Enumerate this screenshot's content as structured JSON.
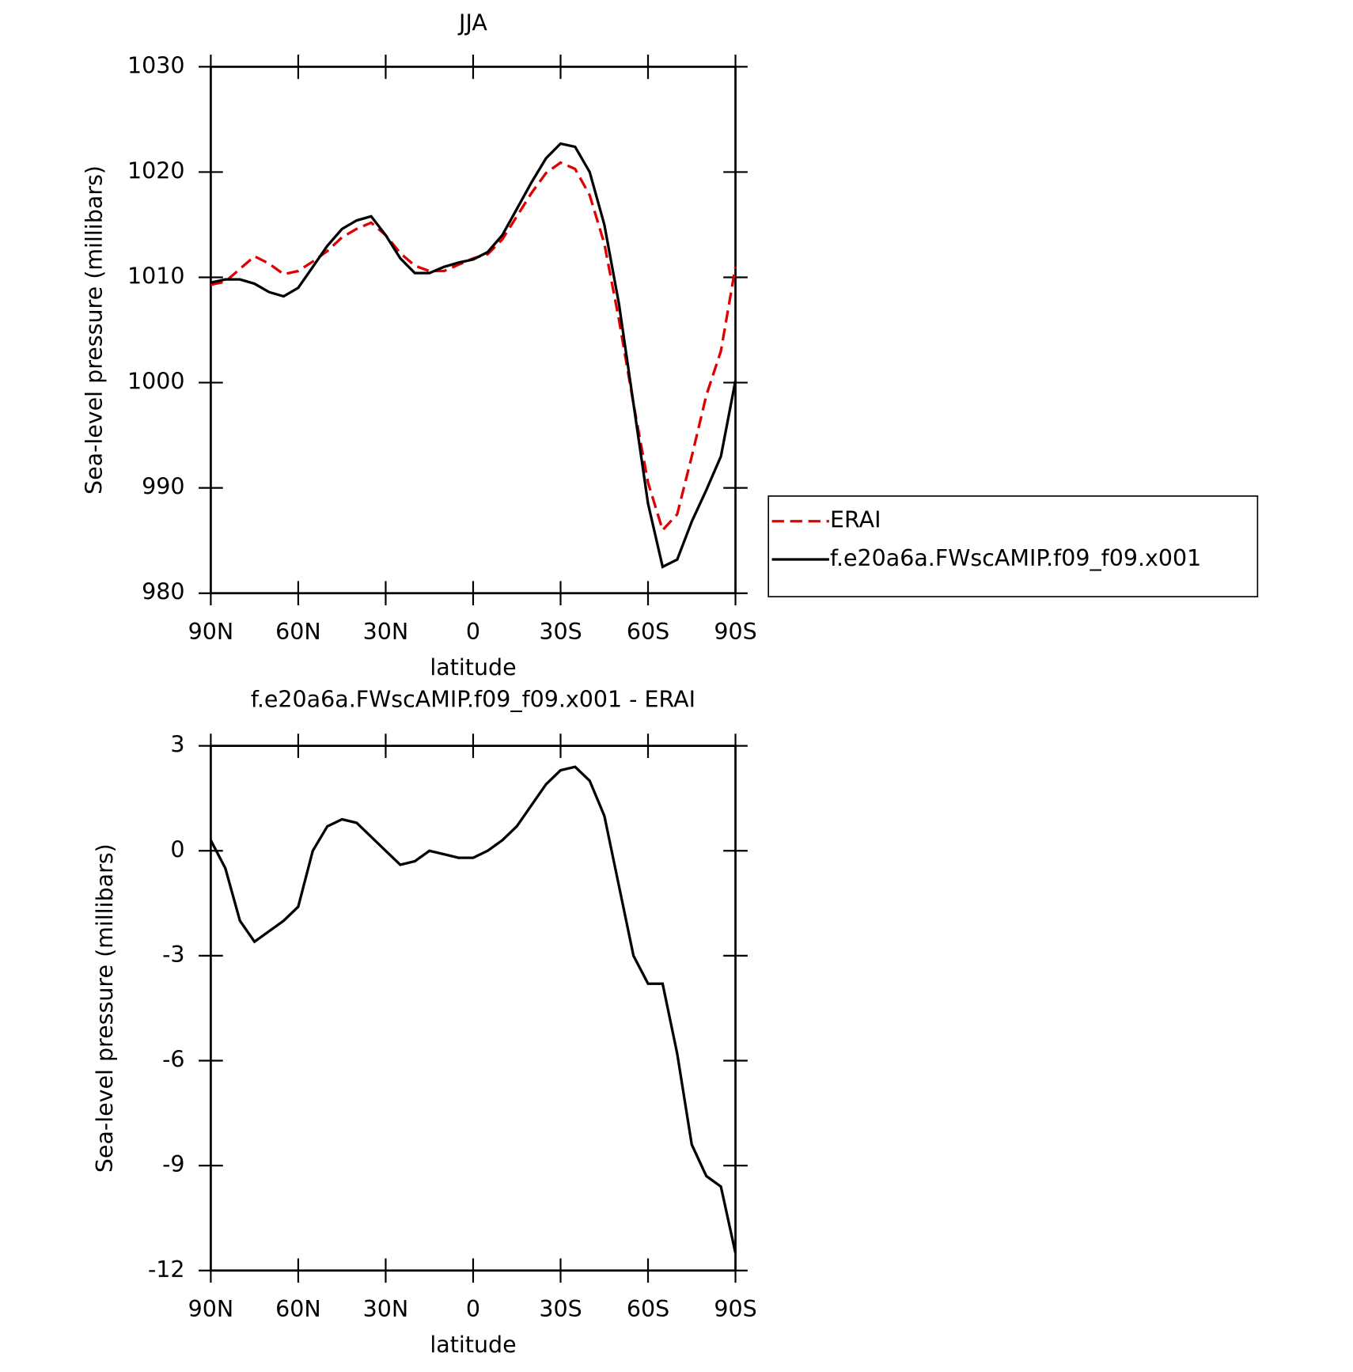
{
  "chart_data": [
    {
      "type": "line",
      "title": "JJA",
      "xlabel": "latitude",
      "ylabel": "Sea-level pressure (millibars)",
      "x": [
        90,
        85,
        80,
        75,
        70,
        65,
        60,
        55,
        50,
        45,
        40,
        35,
        30,
        25,
        20,
        15,
        10,
        5,
        0,
        -5,
        -10,
        -15,
        -20,
        -25,
        -30,
        -35,
        -40,
        -45,
        -50,
        -55,
        -60,
        -65,
        -70,
        -75,
        -80,
        -85,
        -90
      ],
      "xlim": [
        90,
        -90
      ],
      "xticks": [
        {
          "value": 90,
          "label": "90N"
        },
        {
          "value": 60,
          "label": "60N"
        },
        {
          "value": 30,
          "label": "30N"
        },
        0,
        {
          "value": -30,
          "label": "30S"
        },
        {
          "value": -60,
          "label": "60S"
        },
        {
          "value": -90,
          "label": "90S"
        }
      ],
      "ylim": [
        980,
        1030
      ],
      "yticks": [
        980,
        990,
        1000,
        1010,
        1020,
        1030
      ],
      "legend": "right",
      "series": [
        {
          "name": "ERAI",
          "color": "#e00000",
          "dashed": true,
          "values": [
            1009.3,
            1009.6,
            1010.8,
            1012.0,
            1011.3,
            1010.3,
            1010.6,
            1011.5,
            1012.5,
            1013.8,
            1014.6,
            1015.2,
            1014.0,
            1012.3,
            1011.1,
            1010.6,
            1010.6,
            1011.2,
            1011.8,
            1012.2,
            1013.6,
            1015.8,
            1018.0,
            1019.9,
            1020.9,
            1020.3,
            1017.8,
            1013.2,
            1006.0,
            998.0,
            990.5,
            986.0,
            987.5,
            993.0,
            998.8,
            1003.0,
            1011.0
          ]
        },
        {
          "name": "f.e20a6a.FWscAMIP.f09_f09.x001",
          "color": "#000000",
          "dashed": false,
          "values": [
            1009.5,
            1009.8,
            1009.8,
            1009.4,
            1008.6,
            1008.2,
            1009.0,
            1011.0,
            1013.0,
            1014.6,
            1015.4,
            1015.8,
            1014.0,
            1011.8,
            1010.4,
            1010.4,
            1011.0,
            1011.4,
            1011.7,
            1012.4,
            1014.0,
            1016.5,
            1019.0,
            1021.3,
            1022.7,
            1022.4,
            1020.0,
            1015.0,
            1007.5,
            998.0,
            988.5,
            982.5,
            983.2,
            986.8,
            989.8,
            993.0,
            1000.2
          ]
        }
      ]
    },
    {
      "type": "line",
      "title": "f.e20a6a.FWscAMIP.f09_f09.x001 - ERAI",
      "xlabel": "latitude",
      "ylabel": "Sea-level pressure (millibars)",
      "x": [
        90,
        85,
        80,
        75,
        70,
        65,
        60,
        55,
        50,
        45,
        40,
        35,
        30,
        25,
        20,
        15,
        10,
        5,
        0,
        -5,
        -10,
        -15,
        -20,
        -25,
        -30,
        -35,
        -40,
        -45,
        -50,
        -55,
        -60,
        -65,
        -70,
        -75,
        -80,
        -85,
        -90
      ],
      "xlim": [
        90,
        -90
      ],
      "xticks": [
        {
          "value": 90,
          "label": "90N"
        },
        {
          "value": 60,
          "label": "60N"
        },
        {
          "value": 30,
          "label": "30N"
        },
        0,
        {
          "value": -30,
          "label": "30S"
        },
        {
          "value": -60,
          "label": "60S"
        },
        {
          "value": -90,
          "label": "90S"
        }
      ],
      "ylim": [
        -12,
        3
      ],
      "yticks": [
        -12,
        -9,
        -6,
        -3,
        0,
        3
      ],
      "series": [
        {
          "color": "#000000",
          "dashed": false,
          "values": [
            0.3,
            -0.5,
            -2.0,
            -2.6,
            -2.3,
            -2.0,
            -1.6,
            0.0,
            0.7,
            0.9,
            0.8,
            0.4,
            0.0,
            -0.4,
            -0.3,
            0.0,
            -0.1,
            -0.2,
            -0.2,
            0.0,
            0.3,
            0.7,
            1.3,
            1.9,
            2.3,
            2.4,
            2.0,
            1.0,
            -1.0,
            -3.0,
            -3.8,
            -3.8,
            -5.8,
            -8.4,
            -9.3,
            -9.6,
            -11.5
          ]
        }
      ]
    }
  ]
}
